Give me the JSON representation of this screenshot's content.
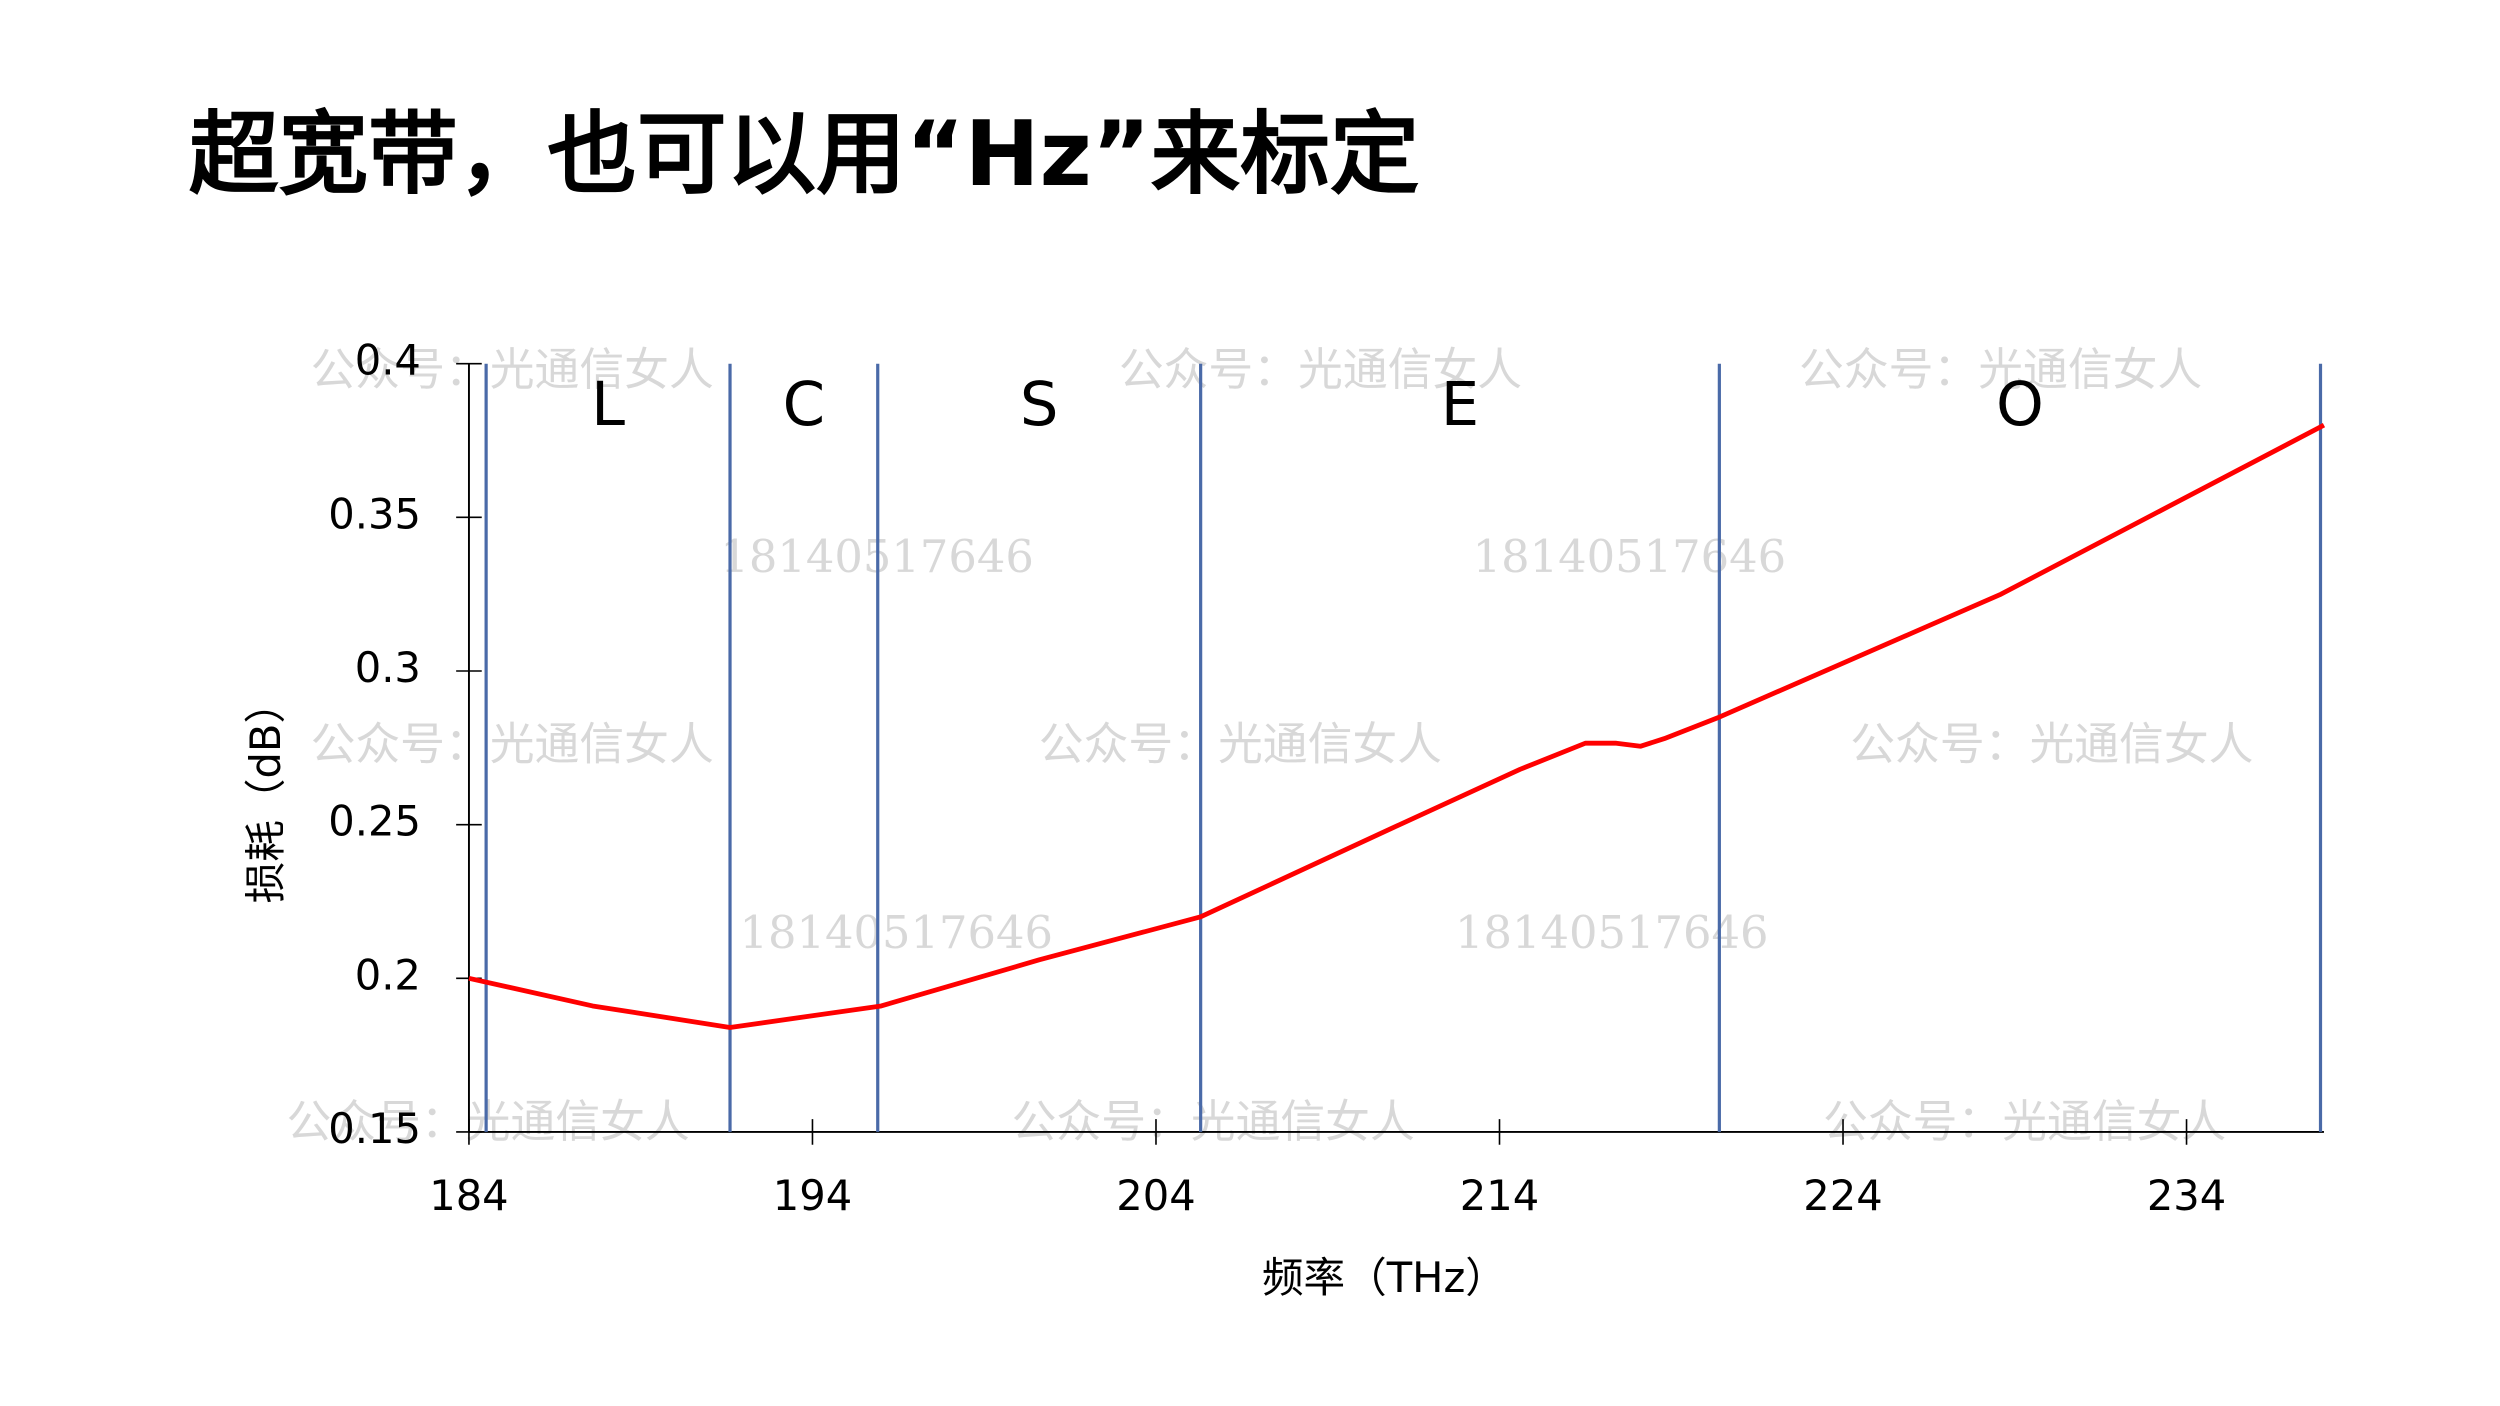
{
  "chart_data": {
    "type": "line",
    "title": "超宽带，也可以用“Hz”来标定",
    "x_label": "频率（THz）",
    "y_label": "损耗（dB）",
    "x": [
      184,
      187.6,
      191.6,
      196,
      200.6,
      205.3,
      210.9,
      214.6,
      216.5,
      217.4,
      218.1,
      218.8,
      220.4,
      228.6,
      238
    ],
    "series": [
      {
        "color": "#ff0000",
        "values": [
          0.2,
          0.191,
          0.184,
          0.191,
          0.206,
          0.22,
          0.249,
          0.268,
          0.2765,
          0.2765,
          0.2755,
          0.278,
          0.285,
          0.325,
          0.38
        ]
      }
    ],
    "xlim": [
      184,
      238
    ],
    "ylim": [
      0.15,
      0.4
    ],
    "xticks": [
      184,
      194,
      204,
      214,
      224,
      234
    ],
    "yticks": [
      0.15,
      0.2,
      0.25,
      0.3,
      0.35,
      0.4
    ],
    "bands": [
      "L",
      "C",
      "S",
      "E",
      "O"
    ],
    "band_edges": [
      184.5,
      191.6,
      195.9,
      205.3,
      220.4,
      237.9
    ],
    "band_line_color": "#4a6aa8",
    "watermarks": [
      "公众号：光通信女人",
      "18140517646"
    ]
  }
}
